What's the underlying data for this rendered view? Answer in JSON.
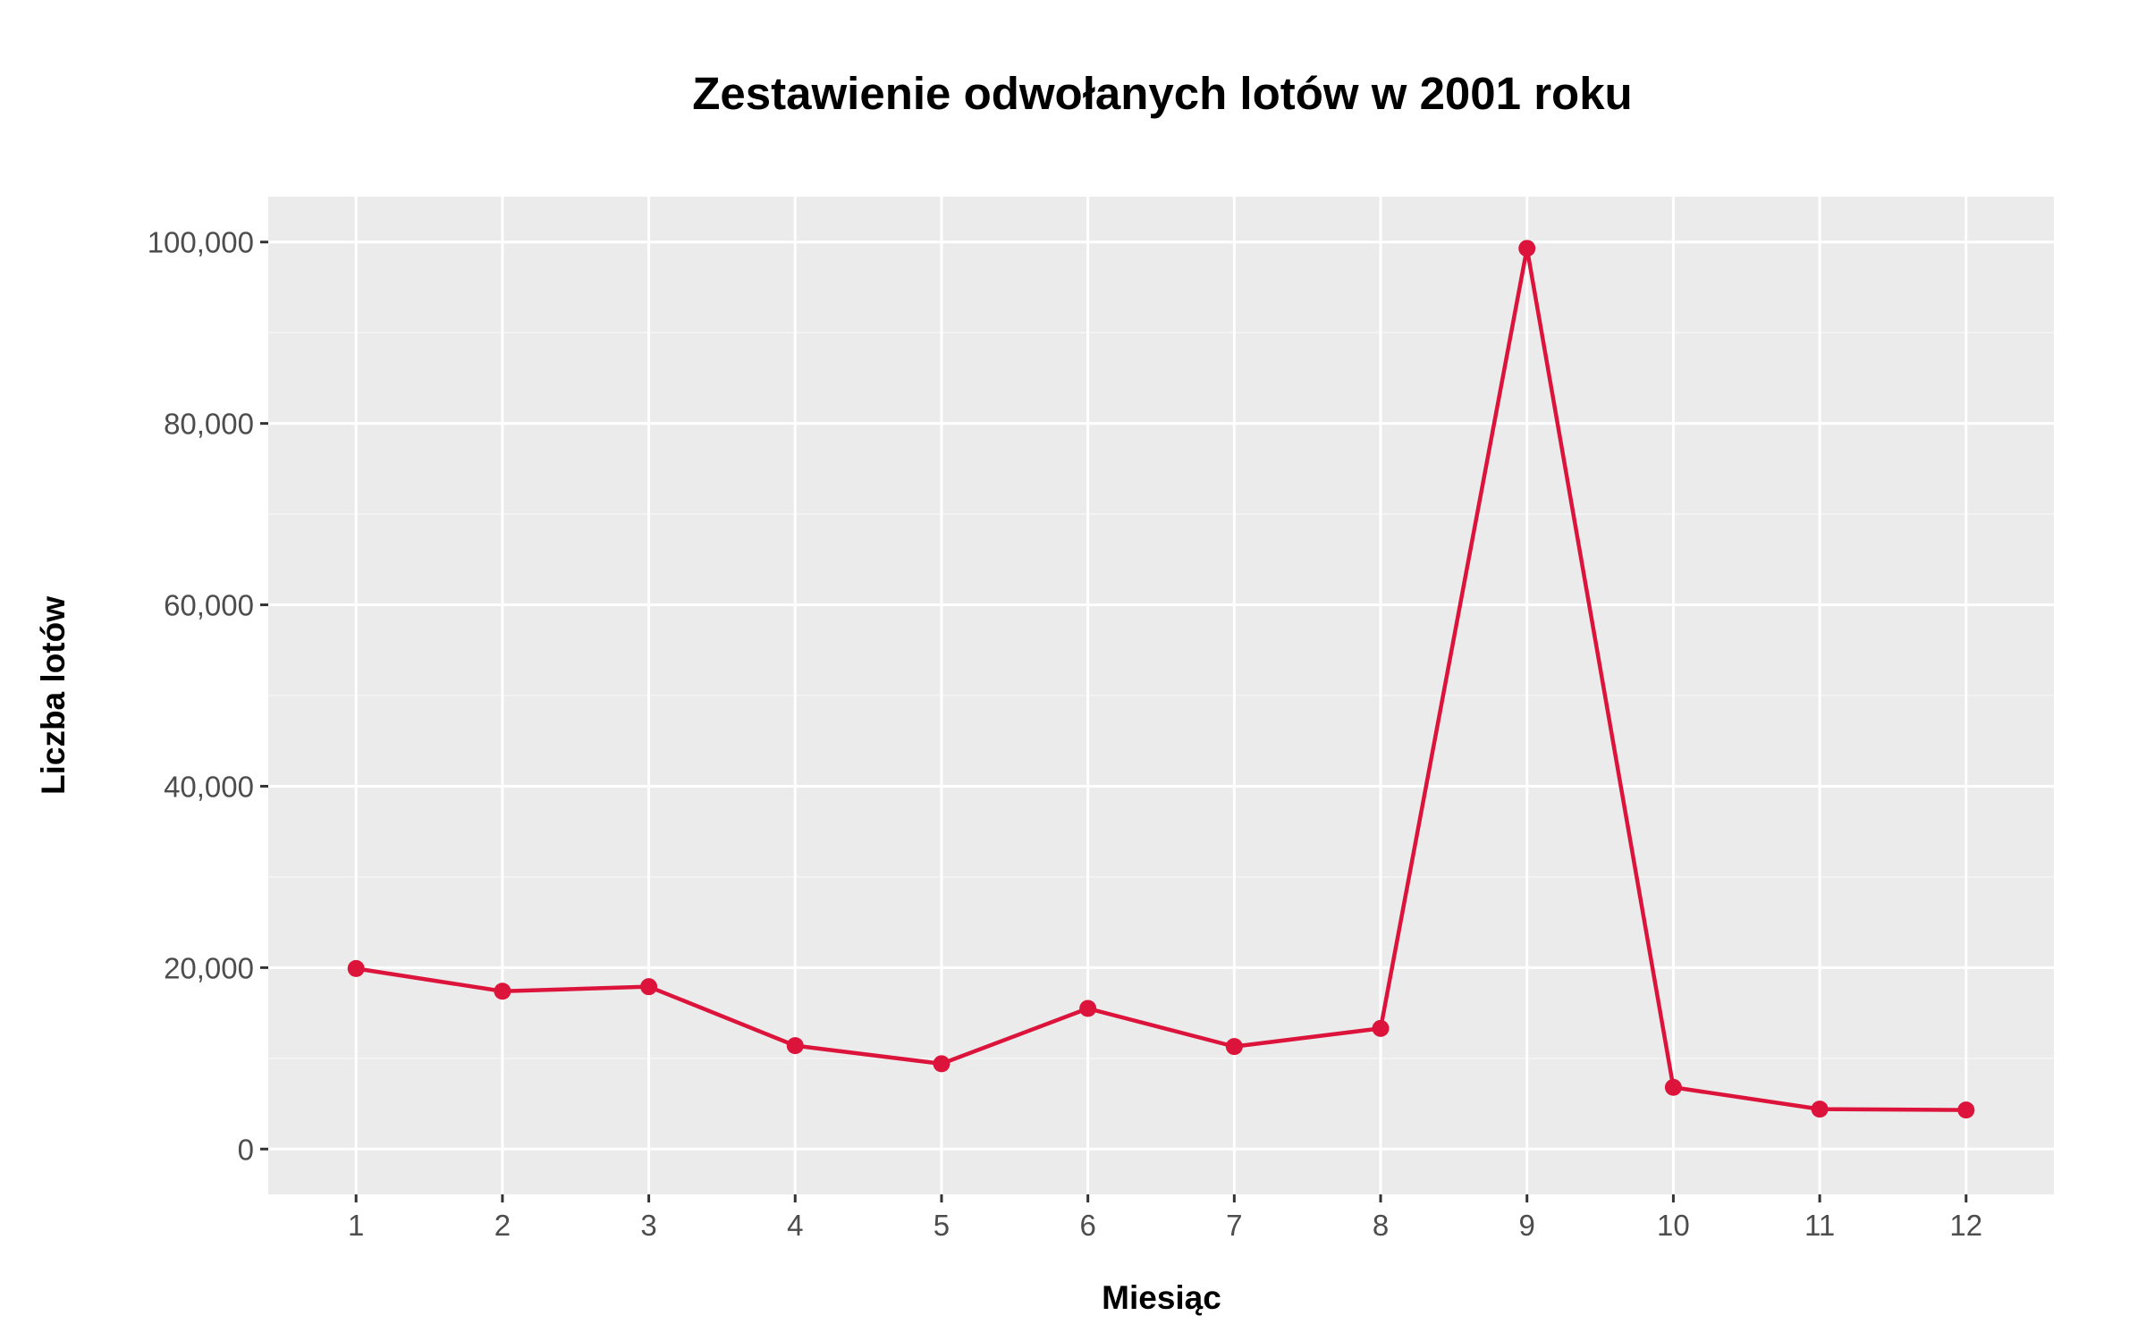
{
  "chart_data": {
    "type": "line",
    "title": "Zestawienie odwołanych lotów w 2001 roku",
    "xlabel": "Miesiąc",
    "ylabel": "Liczba lotów",
    "x": [
      1,
      2,
      3,
      4,
      5,
      6,
      7,
      8,
      9,
      10,
      11,
      12
    ],
    "x_ticks": [
      "1",
      "2",
      "3",
      "4",
      "5",
      "6",
      "7",
      "8",
      "9",
      "10",
      "11",
      "12"
    ],
    "xlim": [
      0.4,
      12.6
    ],
    "y_ticks": [
      0,
      20000,
      40000,
      60000,
      80000,
      100000
    ],
    "y_tick_labels": [
      "0",
      "20,000",
      "40,000",
      "60,000",
      "80,000",
      "100,000"
    ],
    "ylim": [
      -5000,
      105000
    ],
    "series": [
      {
        "values": [
          19900,
          17400,
          17900,
          11400,
          9400,
          15500,
          11300,
          13300,
          99300,
          6800,
          4400,
          4300
        ]
      }
    ],
    "grid": true,
    "legend": "none",
    "colors": {
      "line": "#dc143c",
      "panel_background": "#ebebeb",
      "grid_major": "#ffffff",
      "grid_minor": "#f5f5f5"
    }
  }
}
